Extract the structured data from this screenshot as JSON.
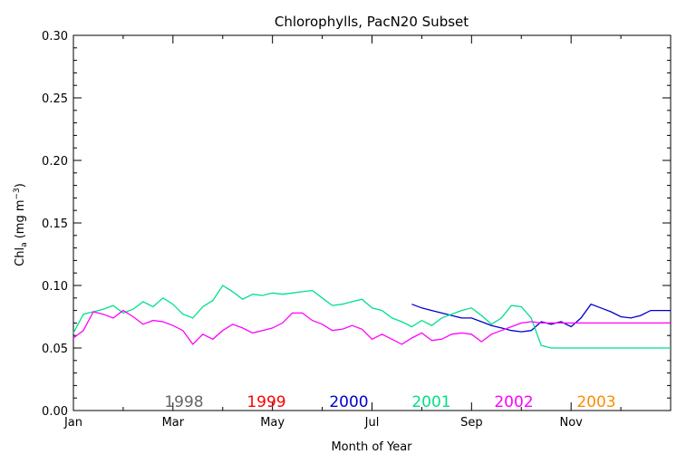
{
  "chart_data": {
    "type": "line",
    "title": "Chlorophylls, PacN20 Subset",
    "xlabel": "Month of Year",
    "ylabel": {
      "main": "Chl",
      "sub": "a",
      "units": " (mg m",
      "exp": "−3",
      "close": ")"
    },
    "xlim": [
      0,
      12
    ],
    "ylim": [
      0,
      0.3
    ],
    "x_ticks": [
      {
        "value": 0,
        "label": "Jan"
      },
      {
        "value": 2,
        "label": "Mar"
      },
      {
        "value": 4,
        "label": "May"
      },
      {
        "value": 6,
        "label": "Jul"
      },
      {
        "value": 8,
        "label": "Sep"
      },
      {
        "value": 10,
        "label": "Nov"
      }
    ],
    "y_ticks": [
      "0.00",
      "0.05",
      "0.10",
      "0.15",
      "0.20",
      "0.25",
      "0.30"
    ],
    "legend_placement": "bottom inside plot",
    "legend": [
      {
        "label": "1998",
        "color": "#666666"
      },
      {
        "label": "1999",
        "color": "#ff0000"
      },
      {
        "label": "2000",
        "color": "#0000cc"
      },
      {
        "label": "2001",
        "color": "#00e08a"
      },
      {
        "label": "2002",
        "color": "#ff00ff"
      },
      {
        "label": "2003",
        "color": "#ff8c00"
      }
    ],
    "series": [
      {
        "name": "2000",
        "color": "#0000cc",
        "x": [
          6.8,
          7.0,
          7.2,
          7.4,
          7.6,
          7.8,
          8.0,
          8.2,
          8.4,
          8.6,
          8.8,
          9.0,
          9.2,
          9.4,
          9.6,
          9.8,
          10.0,
          10.2,
          10.4,
          10.6,
          10.8,
          11.0,
          11.2,
          11.4,
          11.6,
          11.8,
          12.0
        ],
        "y": [
          0.085,
          0.082,
          0.08,
          0.078,
          0.076,
          0.074,
          0.074,
          0.071,
          0.068,
          0.066,
          0.064,
          0.063,
          0.064,
          0.071,
          0.069,
          0.071,
          0.067,
          0.074,
          0.085,
          0.082,
          0.079,
          0.075,
          0.074,
          0.076,
          0.08,
          0.08,
          0.08
        ]
      },
      {
        "name": "2001",
        "color": "#00e08a",
        "x": [
          0.0,
          0.2,
          0.4,
          0.6,
          0.8,
          1.0,
          1.2,
          1.4,
          1.6,
          1.8,
          2.0,
          2.2,
          2.4,
          2.6,
          2.8,
          3.0,
          3.2,
          3.4,
          3.6,
          3.8,
          4.0,
          4.2,
          4.4,
          4.6,
          4.8,
          5.0,
          5.2,
          5.4,
          5.6,
          5.8,
          6.0,
          6.2,
          6.4,
          6.6,
          6.8,
          7.0,
          7.2,
          7.4,
          7.6,
          7.8,
          8.0,
          8.2,
          8.4,
          8.6,
          8.8,
          9.0,
          9.2,
          9.4,
          9.6,
          9.8,
          10.0,
          10.2,
          10.4,
          10.6,
          10.8,
          11.0,
          11.2,
          11.4,
          11.6,
          11.8,
          12.0
        ],
        "y": [
          0.062,
          0.077,
          0.079,
          0.081,
          0.084,
          0.078,
          0.081,
          0.087,
          0.083,
          0.09,
          0.085,
          0.077,
          0.074,
          0.083,
          0.088,
          0.1,
          0.095,
          0.089,
          0.093,
          0.092,
          0.094,
          0.093,
          0.094,
          0.095,
          0.096,
          0.09,
          0.084,
          0.085,
          0.087,
          0.089,
          0.082,
          0.08,
          0.074,
          0.071,
          0.067,
          0.072,
          0.068,
          0.074,
          0.077,
          0.08,
          0.082,
          0.076,
          0.069,
          0.074,
          0.084,
          0.083,
          0.074,
          0.052,
          0.05,
          0.05,
          0.05,
          0.05,
          0.05,
          0.05,
          0.05,
          0.05,
          0.05,
          0.05,
          0.05,
          0.05,
          0.05
        ]
      },
      {
        "name": "2002",
        "color": "#ff00ff",
        "x": [
          0.0,
          0.2,
          0.4,
          0.6,
          0.8,
          1.0,
          1.2,
          1.4,
          1.6,
          1.8,
          2.0,
          2.2,
          2.4,
          2.6,
          2.8,
          3.0,
          3.2,
          3.4,
          3.6,
          3.8,
          4.0,
          4.2,
          4.4,
          4.6,
          4.8,
          5.0,
          5.2,
          5.4,
          5.6,
          5.8,
          6.0,
          6.2,
          6.4,
          6.6,
          6.8,
          7.0,
          7.2,
          7.4,
          7.6,
          7.8,
          8.0,
          8.2,
          8.4,
          8.6,
          8.8,
          9.0,
          9.2,
          9.4,
          9.6,
          9.8,
          10.0,
          10.2,
          10.4,
          10.6,
          10.8,
          11.0,
          11.2,
          11.4,
          11.6,
          11.8,
          12.0
        ],
        "y": [
          0.058,
          0.064,
          0.079,
          0.077,
          0.074,
          0.08,
          0.075,
          0.069,
          0.072,
          0.071,
          0.068,
          0.064,
          0.053,
          0.061,
          0.057,
          0.064,
          0.069,
          0.066,
          0.062,
          0.064,
          0.066,
          0.07,
          0.078,
          0.078,
          0.072,
          0.069,
          0.064,
          0.065,
          0.068,
          0.065,
          0.057,
          0.061,
          0.057,
          0.053,
          0.058,
          0.062,
          0.056,
          0.057,
          0.061,
          0.062,
          0.061,
          0.055,
          0.061,
          0.064,
          0.067,
          0.07,
          0.071,
          0.07,
          0.07,
          0.07,
          0.07,
          0.07,
          0.07,
          0.07,
          0.07,
          0.07,
          0.07,
          0.07,
          0.07,
          0.07,
          0.07
        ]
      }
    ]
  }
}
